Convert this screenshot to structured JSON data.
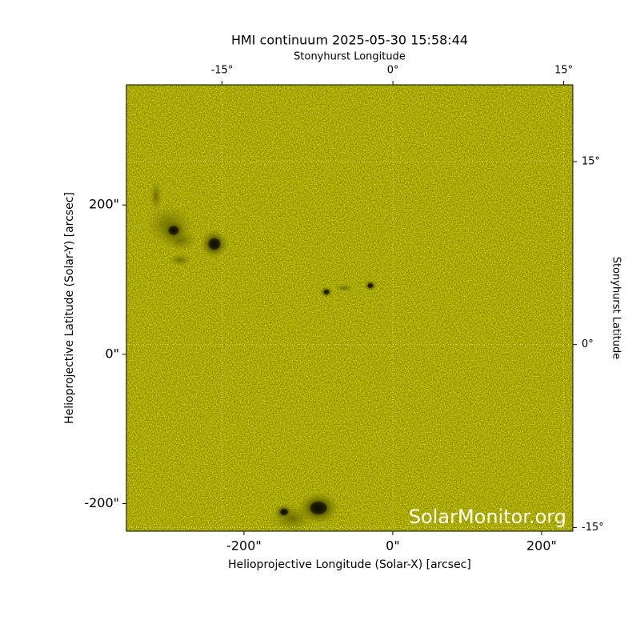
{
  "chart_data": {
    "type": "image",
    "title": "HMI continuum 2025-05-30 15:58:44",
    "xlabel": "Helioprojective Longitude (Solar-X) [arcsec]",
    "ylabel": "Helioprojective Latitude (Solar-Y) [arcsec]",
    "x2label": "Stonyhurst Longitude",
    "y2label": "Stonyhurst Latitude",
    "watermark": "SolarMonitor.org",
    "color": "#cccc00",
    "xlim": [
      -358,
      242
    ],
    "ylim": [
      -237,
      361
    ],
    "xticks": [
      {
        "value": -200,
        "label": "-200\""
      },
      {
        "value": 0,
        "label": "0\""
      },
      {
        "value": 200,
        "label": "200\""
      }
    ],
    "yticks": [
      {
        "value": -200,
        "label": "-200\""
      },
      {
        "value": 0,
        "label": "0\""
      },
      {
        "value": 200,
        "label": "200\""
      }
    ],
    "x2lim": [
      -23.4,
      15.8
    ],
    "y2lim": [
      -15.3,
      21.3
    ],
    "x2ticks": [
      {
        "value": -15,
        "label": "-15°"
      },
      {
        "value": 0,
        "label": "0°"
      },
      {
        "value": 15,
        "label": "15°"
      }
    ],
    "y2ticks": [
      {
        "value": -15,
        "label": "-15°"
      },
      {
        "value": 0,
        "label": "0°"
      },
      {
        "value": 15,
        "label": "15°"
      }
    ],
    "grid": true
  }
}
